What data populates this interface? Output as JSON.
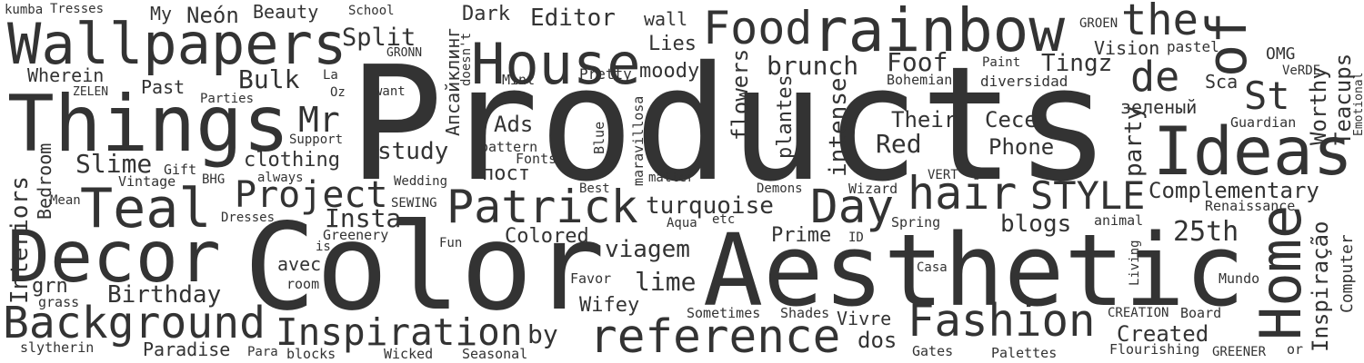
{
  "words": [
    "Products",
    "Color",
    "Aesthetic",
    "Things",
    "Wallpapers",
    "House",
    "rainbow",
    "Food",
    "the",
    "of",
    "Ideas",
    "de",
    "St",
    "Teal",
    "Decor",
    "Background",
    "Inspiration",
    "reference",
    "Fashion",
    "Home",
    "Patrick",
    "Day",
    "hair",
    "STYLE",
    "Project",
    "Mr",
    "Split",
    "kumba",
    "Tresses",
    "My",
    "Neón",
    "Beauty",
    "School",
    "Апсайклинг",
    "doesn't",
    "Dark",
    "Editor",
    "wall",
    "GROEN",
    "Worthy",
    "Teacups",
    "Emotional",
    "Lies",
    "Vision",
    "pastel",
    "OMG",
    "VeRDE",
    "Tingz",
    "Sca",
    "Foof",
    "Paint",
    "Bohemian",
    "diversidad",
    "brunch",
    "moody",
    "Pretty",
    "Mint",
    "GRONN",
    "Wherein",
    "Bulk",
    "La",
    "Oz",
    "want",
    "ZELEN",
    "Past",
    "Parties",
    "зеленый",
    "Guardian",
    "party",
    "Their",
    "Cece",
    "Red",
    "Phone",
    "Ads",
    "pattern",
    "Blue",
    "maravillosa",
    "flowers",
    "plantes",
    "intense",
    "study",
    "Support",
    "Fonts",
    "пост",
    "Slime",
    "Gift",
    "clothing",
    "always",
    "BHG",
    "Vintage",
    "Interiors",
    "Bedroom",
    "Wedding",
    "Best",
    "matter",
    "Demons",
    "Wizard",
    "VERT",
    "Complementary",
    "Computer",
    "Renaissance",
    "Inspiração",
    "SEWING",
    "Mean",
    "turquoise",
    "Insta",
    "Dresses",
    "Aqua",
    "etc",
    "Spring",
    "blogs",
    "animal",
    "25th",
    "Greenery",
    "Colored",
    "Prime",
    "ID",
    "is",
    "Fun",
    "viagem",
    "Casa",
    "grn",
    "grass",
    "avec",
    "room",
    "Favor",
    "lime",
    "Living",
    "Mundo",
    "Birthday",
    "Wifey",
    "Sometimes",
    "Shades",
    "Vivre",
    "CREATION",
    "Board",
    "by",
    "dos",
    "Created",
    "slytherin",
    "Paradise",
    "Para",
    "blocks",
    "Wicked",
    "Seasonal",
    "Gates",
    "Palettes",
    "Flourishing",
    "GREENER",
    "or"
  ]
}
